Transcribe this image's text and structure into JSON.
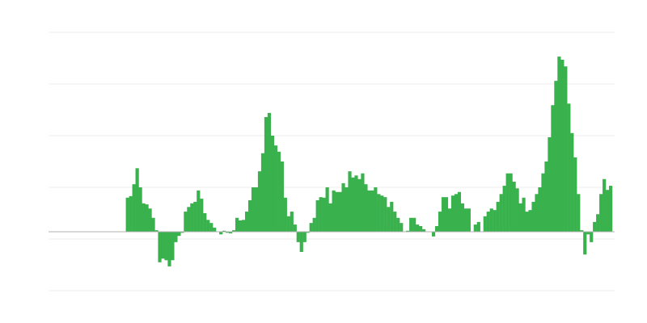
{
  "chart_data": {
    "type": "bar",
    "title": "",
    "xlabel": "",
    "ylabel": "",
    "ylim": [
      -1.14,
      3.86
    ],
    "grid": true,
    "gridlines": [
      3.86,
      2.86,
      1.86,
      0.86,
      -0.14,
      -1.14
    ],
    "colors": {
      "bar": "#39b14c",
      "grid": "#ececec",
      "baseline": "#b0b0b0"
    },
    "values": [
      0,
      0,
      0,
      0,
      0,
      0,
      0,
      0,
      0,
      0,
      0,
      0,
      0,
      0,
      0,
      0,
      0,
      0,
      0,
      0,
      0,
      0,
      0,
      0,
      0.66,
      0.69,
      0.92,
      1.23,
      0.86,
      0.55,
      0.53,
      0.45,
      0.27,
      0.03,
      -0.59,
      -0.52,
      -0.55,
      -0.67,
      -0.55,
      -0.2,
      -0.08,
      -0.02,
      0.39,
      0.48,
      0.55,
      0.58,
      0.8,
      0.64,
      0.36,
      0.23,
      0.17,
      0.08,
      0,
      -0.05,
      0.02,
      -0.02,
      -0.03,
      0.03,
      0.27,
      0.22,
      0.23,
      0.39,
      0.61,
      0.86,
      0.86,
      1.17,
      1.52,
      2.22,
      2.3,
      1.86,
      1.67,
      1.55,
      1.36,
      0.66,
      0.3,
      0.39,
      0.14,
      -0.2,
      -0.39,
      -0.2,
      -0.02,
      0.17,
      0.27,
      0.61,
      0.67,
      0.66,
      0.86,
      0.55,
      0.8,
      0.77,
      0.77,
      0.94,
      0.86,
      1.17,
      1.05,
      1.09,
      1.02,
      1.13,
      0.92,
      0.8,
      0.8,
      0.86,
      0.73,
      0.7,
      0.67,
      0.48,
      0.58,
      0.39,
      0.27,
      0.17,
      0,
      0.02,
      0.27,
      0.27,
      0.14,
      0.11,
      0.05,
      0,
      0,
      -0.09,
      0.11,
      0.39,
      0.67,
      0.67,
      0.45,
      0.7,
      0.73,
      0.77,
      0.55,
      0.45,
      0.45,
      0,
      0.14,
      0.19,
      0,
      0.3,
      0.39,
      0.45,
      0.42,
      0.58,
      0.73,
      0.89,
      1.13,
      1.13,
      0.97,
      0.84,
      0.55,
      0.66,
      0.39,
      0.42,
      0.58,
      0.73,
      0.86,
      1.13,
      1.36,
      1.83,
      2.45,
      2.92,
      3.39,
      3.33,
      3.2,
      2.48,
      1.91,
      1.44,
      0.73,
      0.03,
      -0.44,
      -0.05,
      -0.2,
      0.19,
      0.34,
      0.73,
      1.02,
      0.81,
      0.89
    ]
  }
}
